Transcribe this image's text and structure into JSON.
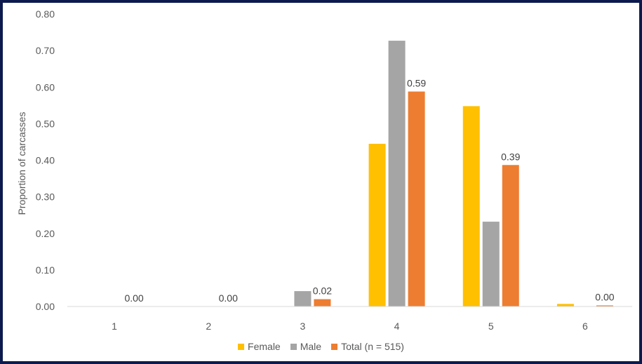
{
  "chart_data": {
    "type": "bar",
    "categories": [
      "1",
      "2",
      "3",
      "4",
      "5",
      "6"
    ],
    "ylabel": "Proportion of carcasses",
    "xlabel": "",
    "ylim": [
      0,
      0.8
    ],
    "yticks": [
      "0.00",
      "0.10",
      "0.20",
      "0.30",
      "0.40",
      "0.50",
      "0.60",
      "0.70",
      "0.80"
    ],
    "grid": false,
    "legend_position": "bottom",
    "series": [
      {
        "name": "Female",
        "color": "#ffc000",
        "values": [
          0,
          0,
          0,
          0.445,
          0.548,
          0.007
        ]
      },
      {
        "name": "Male",
        "color": "#a5a5a5",
        "values": [
          0,
          0,
          0.042,
          0.727,
          0.232,
          0
        ]
      },
      {
        "name": "Total (n = 515)",
        "color": "#ed7d31",
        "values": [
          0.0,
          0.0,
          0.02,
          0.588,
          0.387,
          0.003
        ],
        "data_labels": [
          "0.00",
          "0.00",
          "0.02",
          "0.59",
          "0.39",
          "0.00"
        ]
      }
    ]
  }
}
